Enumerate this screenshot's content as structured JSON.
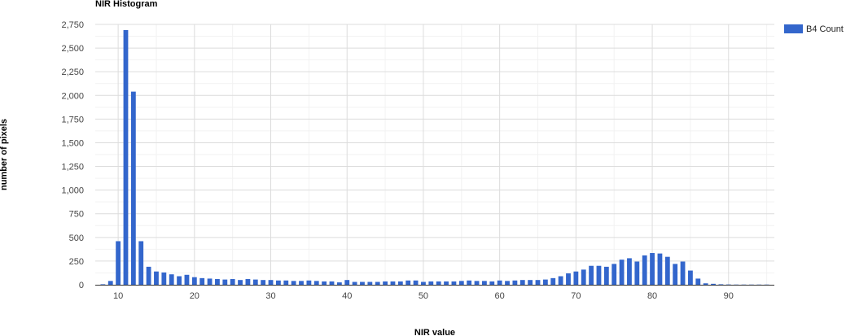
{
  "chart_data": {
    "type": "bar",
    "title": "NIR Histogram",
    "xlabel": "NIR value",
    "ylabel": "number of pixels",
    "xlim": [
      7,
      96
    ],
    "ylim": [
      0,
      2750
    ],
    "x_ticks": [
      10,
      20,
      30,
      40,
      50,
      60,
      70,
      80,
      90
    ],
    "x_tick_labels": [
      "10",
      "20",
      "30",
      "40",
      "50",
      "60",
      "70",
      "80",
      "90"
    ],
    "y_ticks": [
      0,
      250,
      500,
      750,
      1000,
      1250,
      1500,
      1750,
      2000,
      2250,
      2500,
      2750
    ],
    "y_tick_labels": [
      "0",
      "250",
      "500",
      "750",
      "1,000",
      "1,250",
      "1,500",
      "1,750",
      "2,000",
      "2,250",
      "2,500",
      "2,750"
    ],
    "grid": true,
    "legend_position": "right",
    "series": [
      {
        "name": "B4 Count",
        "color": "#3366cc",
        "x": [
          8,
          9,
          10,
          11,
          12,
          13,
          14,
          15,
          16,
          17,
          18,
          19,
          20,
          21,
          22,
          23,
          24,
          25,
          26,
          27,
          28,
          29,
          30,
          31,
          32,
          33,
          34,
          35,
          36,
          37,
          38,
          39,
          40,
          41,
          42,
          43,
          44,
          45,
          46,
          47,
          48,
          49,
          50,
          51,
          52,
          53,
          54,
          55,
          56,
          57,
          58,
          59,
          60,
          61,
          62,
          63,
          64,
          65,
          66,
          67,
          68,
          69,
          70,
          71,
          72,
          73,
          74,
          75,
          76,
          77,
          78,
          79,
          80,
          81,
          82,
          83,
          84,
          85,
          86,
          87,
          88,
          89,
          90,
          91,
          92,
          93,
          94,
          95
        ],
        "values": [
          5,
          40,
          460,
          2690,
          2040,
          460,
          190,
          140,
          130,
          110,
          90,
          105,
          80,
          70,
          65,
          60,
          55,
          60,
          50,
          60,
          55,
          50,
          50,
          45,
          45,
          40,
          40,
          45,
          40,
          35,
          35,
          25,
          50,
          30,
          30,
          30,
          30,
          35,
          35,
          35,
          45,
          45,
          30,
          35,
          35,
          35,
          35,
          40,
          45,
          40,
          40,
          35,
          45,
          40,
          45,
          50,
          50,
          50,
          55,
          70,
          90,
          120,
          140,
          160,
          200,
          200,
          190,
          220,
          265,
          280,
          245,
          310,
          335,
          330,
          295,
          220,
          245,
          150,
          65,
          15,
          10,
          5,
          3,
          2,
          2,
          2,
          2,
          2
        ]
      }
    ]
  }
}
